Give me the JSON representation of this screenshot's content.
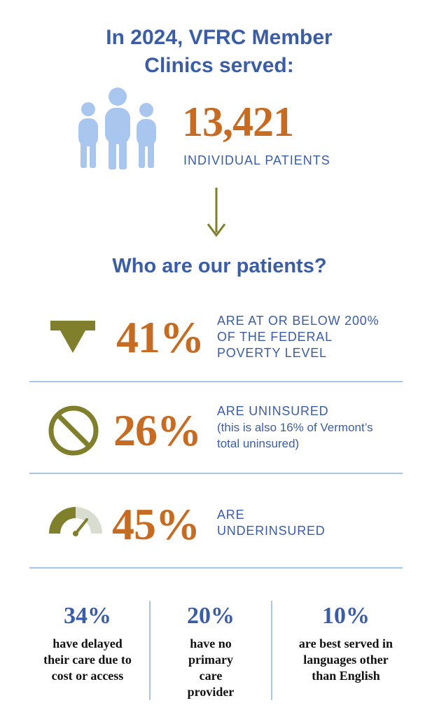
{
  "header": {
    "title": "In 2024, VFRC Member Clinics served:"
  },
  "summary": {
    "count": "13,421",
    "label": "INDIVIDUAL PATIENTS",
    "icon": "people-icon"
  },
  "section": {
    "title": "Who are our patients?"
  },
  "stats": [
    {
      "percent": "41%",
      "description": "ARE AT OR BELOW 200% OF THE FEDERAL POVERTY LEVEL",
      "icon": "down-arrow-icon"
    },
    {
      "percent": "26%",
      "description": "ARE UNINSURED",
      "note": "(this is also 16% of Vermont’s total uninsured)",
      "icon": "prohibited-icon"
    },
    {
      "percent": "45%",
      "description": "ARE UNDERINSURED",
      "icon": "gauge-icon"
    }
  ],
  "bottom_stats": [
    {
      "percent": "34%",
      "description": "have delayed their care due to cost or access"
    },
    {
      "percent": "20%",
      "description": "have no primary care provider"
    },
    {
      "percent": "10%",
      "description": "are best served in languages other than English"
    }
  ],
  "colors": {
    "heading_blue": "#3b5da6",
    "accent_orange": "#c76b22",
    "icon_olive": "#7f7f2c",
    "icon_light_blue": "#a9c6ef",
    "divider_blue": "#aac5e6"
  }
}
